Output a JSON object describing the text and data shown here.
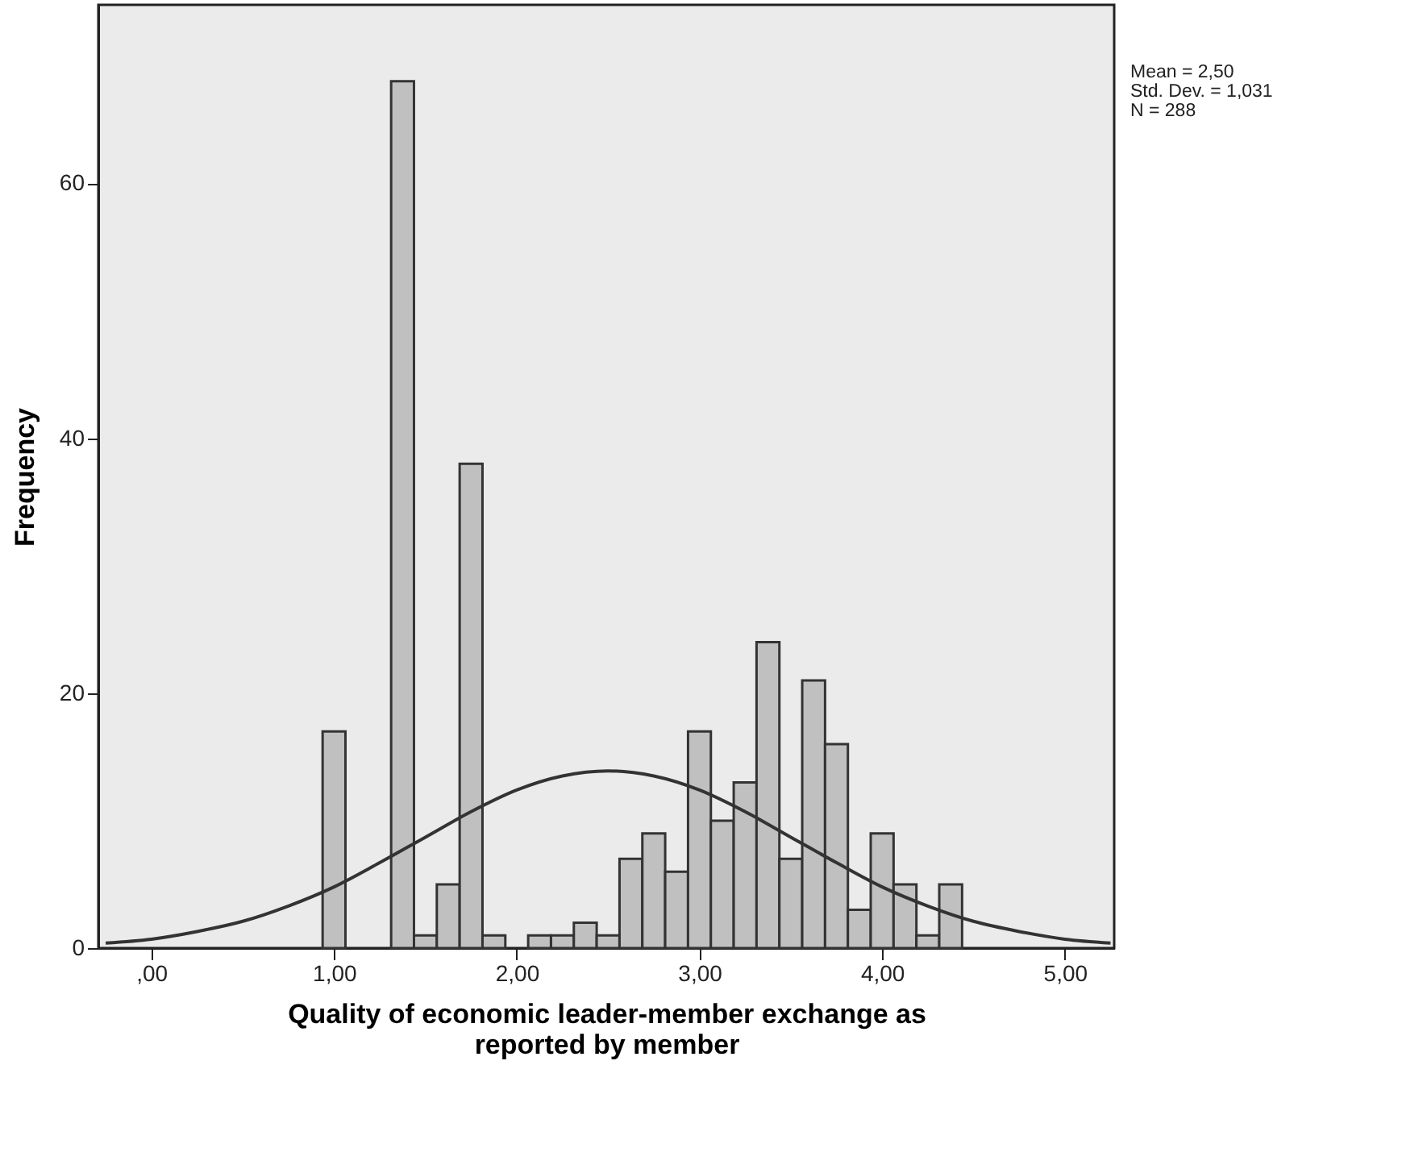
{
  "chart_data": {
    "type": "histogram",
    "xlabel": "Quality of economic leader-member exchange as reported by member",
    "ylabel": "Frequency",
    "annotations": [
      "Mean = 2,50",
      "Std. Dev. = 1,031",
      "N = 288"
    ],
    "bins": [
      0.9375,
      1.0625,
      1.1875,
      1.3125,
      1.4375,
      1.5625,
      1.6875,
      1.8125,
      1.9375,
      2.0625,
      2.1875,
      2.3125,
      2.4375,
      2.5625,
      2.6875,
      2.8125,
      2.9375,
      3.0625,
      3.1875,
      3.3125,
      3.4375,
      3.5625,
      3.6875,
      3.8125,
      3.9375,
      4.0625,
      4.1875,
      4.3125,
      4.4375
    ],
    "series": [
      {
        "color": "#c0c0c0",
        "values": [
          17,
          0,
          0,
          68,
          1,
          5,
          38,
          1,
          0,
          1,
          1,
          2,
          1,
          7,
          9,
          6,
          17,
          10,
          13,
          24,
          7,
          21,
          16,
          3,
          9,
          5,
          1,
          5
        ]
      },
      {
        "type": "line",
        "color": "#333333",
        "x": [
          -0.25,
          0,
          0.25,
          0.5,
          0.75,
          1,
          1.25,
          1.5,
          1.75,
          2,
          2.25,
          2.5,
          2.75,
          3,
          3.25,
          3.5,
          3.75,
          4,
          4.25,
          4.5,
          4.75,
          5,
          5.25
        ],
        "values": [
          0.4,
          0.7,
          1.3,
          2.1,
          3.3,
          4.8,
          6.7,
          8.7,
          10.7,
          12.4,
          13.5,
          13.9,
          13.5,
          12.4,
          10.7,
          8.7,
          6.7,
          4.8,
          3.3,
          2.1,
          1.3,
          0.7,
          0.4
        ]
      }
    ],
    "xlim": [
      -0.29,
      5.27
    ],
    "ylim": [
      0,
      74
    ],
    "xticks": [
      {
        "value": 0,
        "label": ",00"
      },
      {
        "value": 1,
        "label": "1,00"
      },
      {
        "value": 2,
        "label": "2,00"
      },
      {
        "value": 3,
        "label": "3,00"
      },
      {
        "value": 4,
        "label": "4,00"
      },
      {
        "value": 5,
        "label": "5,00"
      }
    ],
    "yticks": [
      0,
      20,
      40,
      60
    ],
    "grid": false
  }
}
